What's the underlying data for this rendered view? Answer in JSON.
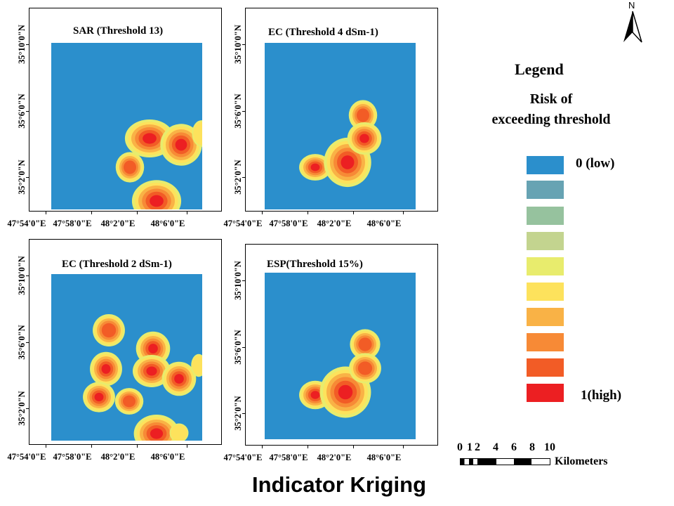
{
  "panels": [
    {
      "title": "SAR (Threshold 13)"
    },
    {
      "title": "EC (Threshold 4 dSm-1)"
    },
    {
      "title": "EC (Threshold 2 dSm-1)"
    },
    {
      "title": "ESP(Threshold 15%)"
    }
  ],
  "latitude_ticks": [
    "35°10'0\"N",
    "35°6'0\"N",
    "35°2'0\"N"
  ],
  "longitude_ticks": [
    "47°54'0\"E",
    "47°58'0\"E",
    "48°2'0\"E",
    "48°6'0\"E"
  ],
  "legend": {
    "title": "Legend",
    "subtitle_line1": "Risk of",
    "subtitle_line2": "exceeding threshold",
    "low_label": "0 (low)",
    "high_label": "1(high)",
    "colors": [
      "#2b8fcc",
      "#67a3b3",
      "#96c29e",
      "#c3d48f",
      "#e8ec6d",
      "#fde25c",
      "#f9b246",
      "#f78a36",
      "#f25c26",
      "#ec1f22"
    ]
  },
  "scale_bar": {
    "numbers": [
      "0",
      "1",
      "2",
      "4",
      "6",
      "8",
      "10"
    ],
    "unit": "Kilometers"
  },
  "north_arrow": {
    "label": "N",
    "icon": "north-arrow-icon"
  },
  "footer_title": "Indicator Kriging"
}
